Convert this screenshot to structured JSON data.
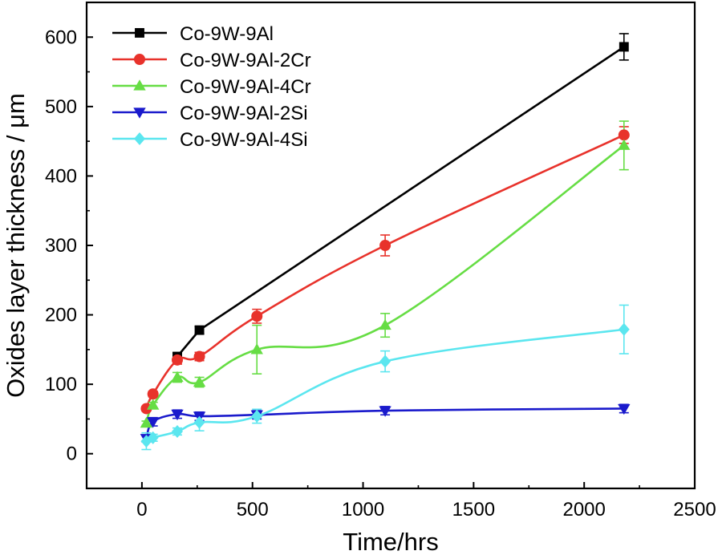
{
  "chart_data": {
    "type": "line",
    "xlabel": "Time/hrs",
    "ylabel": "Oxides layer thickness / μm",
    "xlim": [
      -250,
      2500
    ],
    "ylim": [
      -50,
      650
    ],
    "xticks": [
      0,
      500,
      1000,
      1500,
      2000,
      2500
    ],
    "yticks": [
      0,
      100,
      200,
      300,
      400,
      500,
      600
    ],
    "grid": false,
    "legend_position": "top-left",
    "series": [
      {
        "name": "Co-9W-9Al",
        "color": "#000000",
        "marker": "square",
        "x": [
          160,
          260,
          2180
        ],
        "y": [
          140,
          178,
          586
        ],
        "yerr": [
          5,
          5,
          19
        ]
      },
      {
        "name": "Co-9W-9Al-2Cr",
        "color": "#e8322b",
        "marker": "circle",
        "x": [
          20,
          50,
          160,
          260,
          520,
          1100,
          2180
        ],
        "y": [
          65,
          86,
          135,
          140,
          198,
          300,
          459
        ],
        "yerr": [
          3,
          4,
          6,
          6,
          10,
          15,
          12
        ]
      },
      {
        "name": "Co-9W-9Al-4Cr",
        "color": "#66dd44",
        "marker": "triangle-up",
        "x": [
          20,
          50,
          160,
          260,
          520,
          1100,
          2180
        ],
        "y": [
          44,
          70,
          110,
          103,
          150,
          185,
          444
        ],
        "yerr": [
          3,
          4,
          7,
          7,
          35,
          17,
          35
        ]
      },
      {
        "name": "Co-9W-9Al-2Si",
        "color": "#1a1acc",
        "marker": "triangle-down",
        "x": [
          20,
          50,
          160,
          260,
          520,
          1100,
          2180
        ],
        "y": [
          22,
          46,
          57,
          54,
          56,
          62,
          65
        ],
        "yerr": [
          5,
          6,
          6,
          6,
          6,
          6,
          6
        ]
      },
      {
        "name": "Co-9W-9Al-4Si",
        "color": "#5be6ef",
        "marker": "diamond",
        "x": [
          20,
          50,
          160,
          260,
          520,
          1100,
          2180
        ],
        "y": [
          18,
          23,
          32,
          45,
          54,
          133,
          179
        ],
        "yerr": [
          12,
          5,
          5,
          12,
          10,
          15,
          35
        ]
      }
    ]
  }
}
